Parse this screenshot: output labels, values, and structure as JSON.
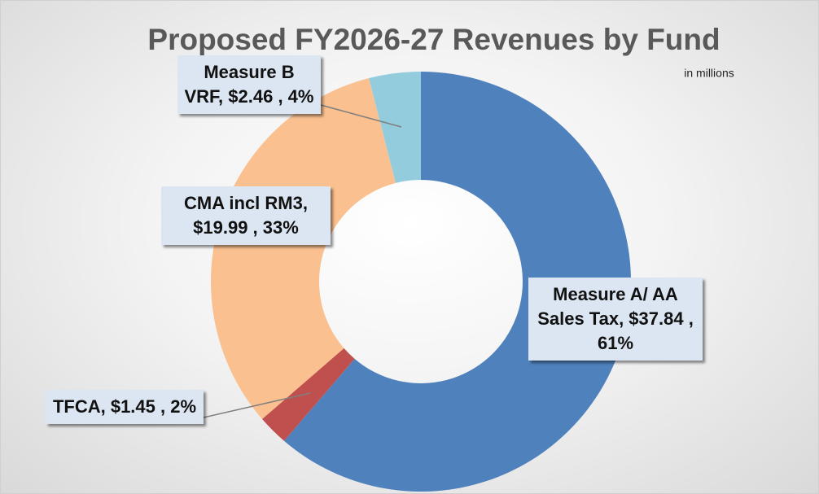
{
  "chart_data": {
    "type": "donut",
    "title": "Proposed FY2026-27 Revenues by Fund",
    "subtitle": "in millions",
    "values": [
      37.84,
      1.45,
      19.99,
      2.46
    ],
    "value_labels": [
      "Measure A/ AA Sales Tax, $37.84 , 61%",
      "TFCA,  $1.45 , 2%",
      "CMA incl RM3,  $19.99 , 33%",
      "Measure B VRF,  $2.46 , 4%"
    ],
    "colors": [
      "#4f81bd",
      "#c0504d",
      "#fac090",
      "#93cddd"
    ]
  }
}
